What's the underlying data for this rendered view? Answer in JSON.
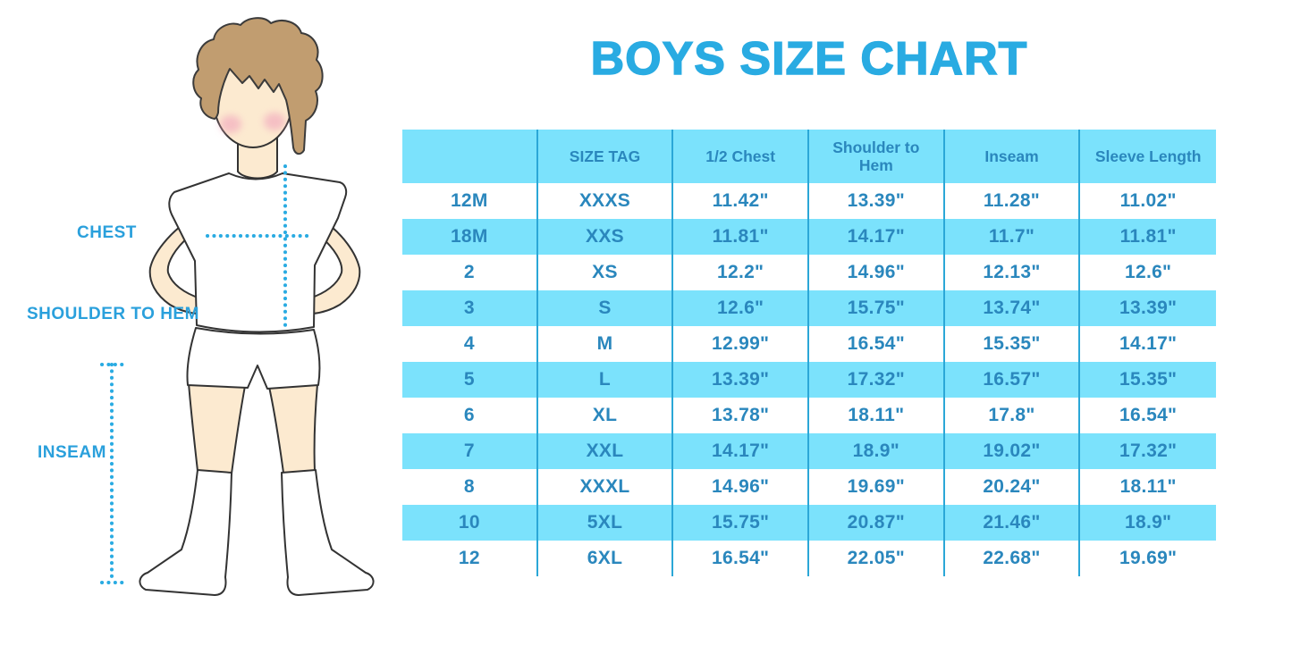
{
  "title": "BOYS SIZE CHART",
  "figure": {
    "description": "boy-in-tshirt-shorts-and-socks-measurement-diagram",
    "labels": {
      "chest": "CHEST",
      "shoulder_to_hem": "SHOULDER TO HEM",
      "inseam": "INSEAM"
    }
  },
  "chart_data": {
    "type": "table",
    "title": "BOYS SIZE CHART",
    "columns": [
      "",
      "SIZE TAG",
      "1/2 Chest",
      "Shoulder to Hem",
      "Inseam",
      "Sleeve Length"
    ],
    "rows": [
      [
        "12M",
        "XXXS",
        "11.42\"",
        "13.39\"",
        "11.28\"",
        "11.02\""
      ],
      [
        "18M",
        "XXS",
        "11.81\"",
        "14.17\"",
        "11.7\"",
        "11.81\""
      ],
      [
        "2",
        "XS",
        "12.2\"",
        "14.96\"",
        "12.13\"",
        "12.6\""
      ],
      [
        "3",
        "S",
        "12.6\"",
        "15.75\"",
        "13.74\"",
        "13.39\""
      ],
      [
        "4",
        "M",
        "12.99\"",
        "16.54\"",
        "15.35\"",
        "14.17\""
      ],
      [
        "5",
        "L",
        "13.39\"",
        "17.32\"",
        "16.57\"",
        "15.35\""
      ],
      [
        "6",
        "XL",
        "13.78\"",
        "18.11\"",
        "17.8\"",
        "16.54\""
      ],
      [
        "7",
        "XXL",
        "14.17\"",
        "18.9\"",
        "19.02\"",
        "17.32\""
      ],
      [
        "8",
        "XXXL",
        "14.96\"",
        "19.69\"",
        "20.24\"",
        "18.11\""
      ],
      [
        "10",
        "5XL",
        "15.75\"",
        "20.87\"",
        "21.46\"",
        "18.9\""
      ],
      [
        "12",
        "6XL",
        "16.54\"",
        "22.05\"",
        "22.68\"",
        "19.69\""
      ]
    ],
    "row_striping": "header and alternate rows cyan",
    "legend_position": "none",
    "grid": "vertical dividers only"
  },
  "colors": {
    "title_blue": "#29ABE2",
    "label_blue": "#2AA0DC",
    "dotted_line_blue": "#29ABE2",
    "row_fill_cyan": "#7BE2FC",
    "divider_blue": "#2BA7D7",
    "table_text_blue": "#2A87BD",
    "skin": "#FCEAD0",
    "hair": "#C19D70",
    "blush": "#F2A9BE",
    "outline": "#333333",
    "background": "#FFFFFF"
  }
}
